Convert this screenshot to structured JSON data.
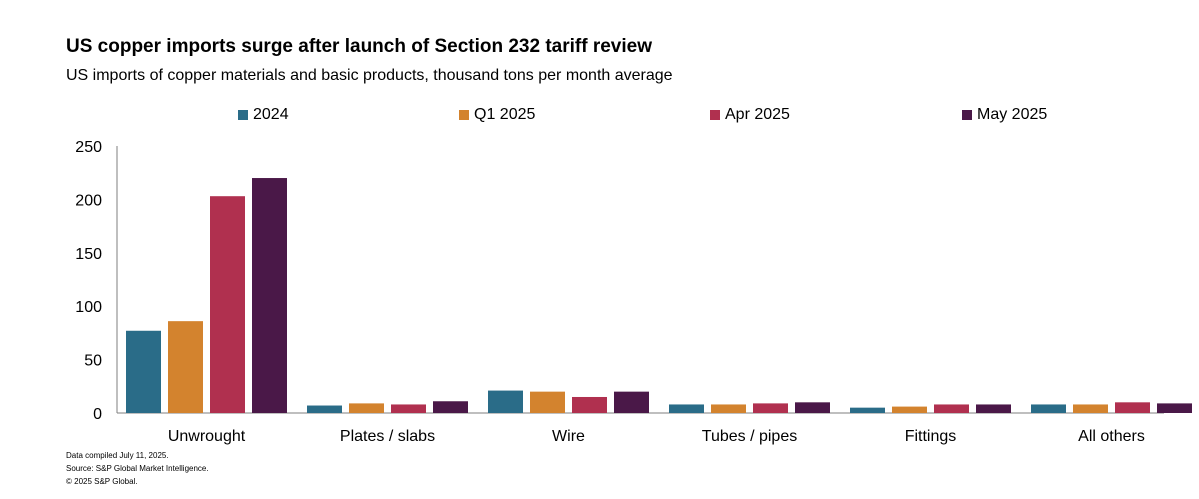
{
  "chart_data": {
    "type": "bar",
    "title": "US copper imports surge after launch of Section 232 tariff review",
    "subtitle": "US imports of copper materials and basic products, thousand tons per month average",
    "xlabel": "",
    "ylabel": "",
    "ylim": [
      0,
      250
    ],
    "yticks": [
      "0",
      "50",
      "100",
      "150",
      "200",
      "250"
    ],
    "legend_position": "top",
    "grid": false,
    "categories": [
      "Unwrought",
      "Plates / slabs",
      "Wire",
      "Tubes / pipes",
      "Fittings",
      "All others"
    ],
    "series": [
      {
        "name": "2024",
        "color": "#2a6c88",
        "values": [
          77,
          7,
          21,
          8,
          5,
          8
        ]
      },
      {
        "name": "Q1 2025",
        "color": "#d3832e",
        "values": [
          86,
          9,
          20,
          8,
          6,
          8
        ]
      },
      {
        "name": "Apr 2025",
        "color": "#b0304f",
        "values": [
          203,
          8,
          15,
          9,
          8,
          10
        ]
      },
      {
        "name": "May 2025",
        "color": "#4a1848",
        "values": [
          220,
          11,
          20,
          10,
          8,
          9
        ]
      }
    ]
  },
  "footnotes": {
    "compiled": "Data compiled July 11, 2025.",
    "source": "Source: S&P Global Market Intelligence.",
    "copyright": "© 2025 S&P Global."
  }
}
